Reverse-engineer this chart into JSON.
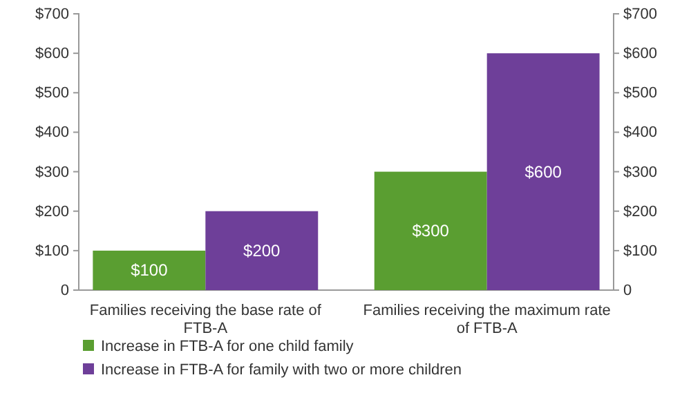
{
  "chart_data": {
    "type": "bar",
    "categories": [
      "Families receiving the base rate of FTB-A",
      "Families receiving the maximum rate of FTB-A"
    ],
    "series": [
      {
        "name": "Increase in FTB-A for one child family",
        "color": "#5a9e31",
        "values": [
          100,
          300
        ],
        "value_labels": [
          "$100",
          "$300"
        ]
      },
      {
        "name": "Increase in FTB-A for family with two or more children",
        "color": "#6e3f99",
        "values": [
          200,
          600
        ],
        "value_labels": [
          "$200",
          "$600"
        ]
      }
    ],
    "ylim": [
      0,
      700
    ],
    "yticks": [
      {
        "value": 0,
        "label": "0"
      },
      {
        "value": 100,
        "label": "$100"
      },
      {
        "value": 200,
        "label": "$200"
      },
      {
        "value": 300,
        "label": "$300"
      },
      {
        "value": 400,
        "label": "$400"
      },
      {
        "value": 500,
        "label": "$500"
      },
      {
        "value": 600,
        "label": "$600"
      },
      {
        "value": 700,
        "label": "$700"
      }
    ],
    "y2lim": [
      0,
      700
    ],
    "y2ticks": [
      {
        "value": 0,
        "label": "0"
      },
      {
        "value": 100,
        "label": "$100"
      },
      {
        "value": 200,
        "label": "$200"
      },
      {
        "value": 300,
        "label": "$300"
      },
      {
        "value": 400,
        "label": "$400"
      },
      {
        "value": 500,
        "label": "$500"
      },
      {
        "value": 600,
        "label": "$600"
      },
      {
        "value": 700,
        "label": "$700"
      }
    ],
    "grid": false,
    "legend": "bottom"
  }
}
